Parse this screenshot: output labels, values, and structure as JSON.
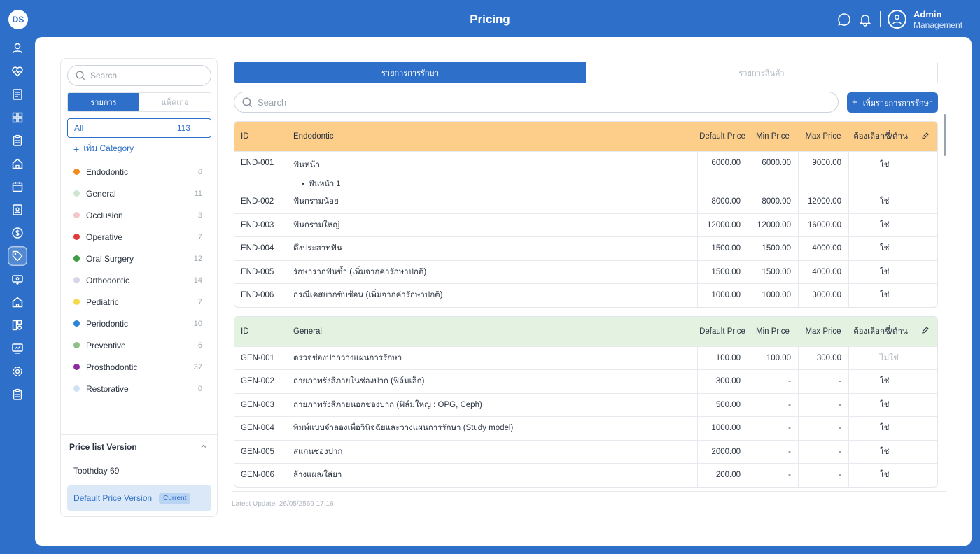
{
  "header": {
    "title": "Pricing",
    "logo_text": "DS",
    "user": {
      "name": "Admin",
      "role": "Management"
    }
  },
  "left_panel": {
    "search_placeholder": "Search",
    "tabs": [
      {
        "label": "รายการ"
      },
      {
        "label": "แพ็คเกจ"
      }
    ],
    "all": {
      "label": "All",
      "count": "113"
    },
    "add_category": "เพิ่ม Category",
    "categories": [
      {
        "name": "Endodontic",
        "count": "6",
        "color": "#f08c1e"
      },
      {
        "name": "General",
        "count": "11",
        "color": "#cfe5cf"
      },
      {
        "name": "Occlusion",
        "count": "3",
        "color": "#f5c6ca"
      },
      {
        "name": "Operative",
        "count": "7",
        "color": "#e03b3b"
      },
      {
        "name": "Oral Surgery",
        "count": "12",
        "color": "#3f9d46"
      },
      {
        "name": "Orthodontic",
        "count": "14",
        "color": "#d8d4ea"
      },
      {
        "name": "Pediatric",
        "count": "7",
        "color": "#f6d94a"
      },
      {
        "name": "Periodontic",
        "count": "10",
        "color": "#2d84d8"
      },
      {
        "name": "Preventive",
        "count": "6",
        "color": "#8fbf86"
      },
      {
        "name": "Prosthodontic",
        "count": "37",
        "color": "#8e2b9e"
      },
      {
        "name": "Restorative",
        "count": "0",
        "color": "#cde2f4"
      }
    ],
    "version": {
      "title": "Price list Version",
      "items": [
        "Toothday 69"
      ],
      "current": {
        "label": "Default Price Version",
        "badge": "Current"
      }
    }
  },
  "main": {
    "tabs": [
      {
        "label": "รายการการรักษา"
      },
      {
        "label": "รายการสินค้า"
      }
    ],
    "search_placeholder": "Search",
    "add_button": "เพิ่มรายการการรักษา",
    "columns": {
      "id": "ID",
      "default_price": "Default Price",
      "min_price": "Min Price",
      "max_price": "Max Price",
      "required": "ต้องเลือกซี่/ด้าน"
    },
    "tables": [
      {
        "category": "Endodontic",
        "header_color": "#fdcd8a",
        "rows": [
          {
            "id": "END-001",
            "name": "ฟันหน้า",
            "sub": "ฟันหน้า 1",
            "default": "6000.00",
            "min": "6000.00",
            "max": "9000.00",
            "req": "ใช่"
          },
          {
            "id": "END-002",
            "name": "ฟันกรามน้อย",
            "default": "8000.00",
            "min": "8000.00",
            "max": "12000.00",
            "req": "ใช่"
          },
          {
            "id": "END-003",
            "name": "ฟันกรามใหญ่",
            "default": "12000.00",
            "min": "12000.00",
            "max": "16000.00",
            "req": "ใช่"
          },
          {
            "id": "END-004",
            "name": "ดึงประสาทฟัน",
            "default": "1500.00",
            "min": "1500.00",
            "max": "4000.00",
            "req": "ใช่"
          },
          {
            "id": "END-005",
            "name": "รักษารากฟันซ้ำ (เพิ่มจากค่ารักษาปกติ)",
            "default": "1500.00",
            "min": "1500.00",
            "max": "4000.00",
            "req": "ใช่"
          },
          {
            "id": "END-006",
            "name": "กรณีเคสยากซับซ้อน (เพิ่มจากค่ารักษาปกติ)",
            "default": "1000.00",
            "min": "1000.00",
            "max": "3000.00",
            "req": "ใช่"
          }
        ]
      },
      {
        "category": "General",
        "header_color": "#e4f2e2",
        "rows": [
          {
            "id": "GEN-001",
            "name": "ตรวจช่องปากวางแผนการรักษา",
            "default": "100.00",
            "min": "100.00",
            "max": "300.00",
            "req": "ไม่ใช่"
          },
          {
            "id": "GEN-002",
            "name": "ถ่ายภาพรังสีภายในช่องปาก (ฟิล์มเล็ก)",
            "default": "300.00",
            "min": "-",
            "max": "-",
            "req": "ใช่"
          },
          {
            "id": "GEN-003",
            "name": "ถ่ายภาพรังสีภายนอกช่องปาก (ฟิล์มใหญ่ : OPG, Ceph)",
            "default": "500.00",
            "min": "-",
            "max": "-",
            "req": "ใช่"
          },
          {
            "id": "GEN-004",
            "name": "พิมพ์แบบจำลองเพื่อวินิจฉัยและวางแผนการรักษา (Study model)",
            "default": "1000.00",
            "min": "-",
            "max": "-",
            "req": "ใช่"
          },
          {
            "id": "GEN-005",
            "name": "สแกนช่องปาก",
            "default": "2000.00",
            "min": "-",
            "max": "-",
            "req": "ใช่"
          },
          {
            "id": "GEN-006",
            "name": "ล้างแผล/ใส่ยา",
            "default": "200.00",
            "min": "-",
            "max": "-",
            "req": "ใช่"
          }
        ]
      }
    ],
    "latest_update": "Latest Update: 26/05/2569 17:16"
  }
}
